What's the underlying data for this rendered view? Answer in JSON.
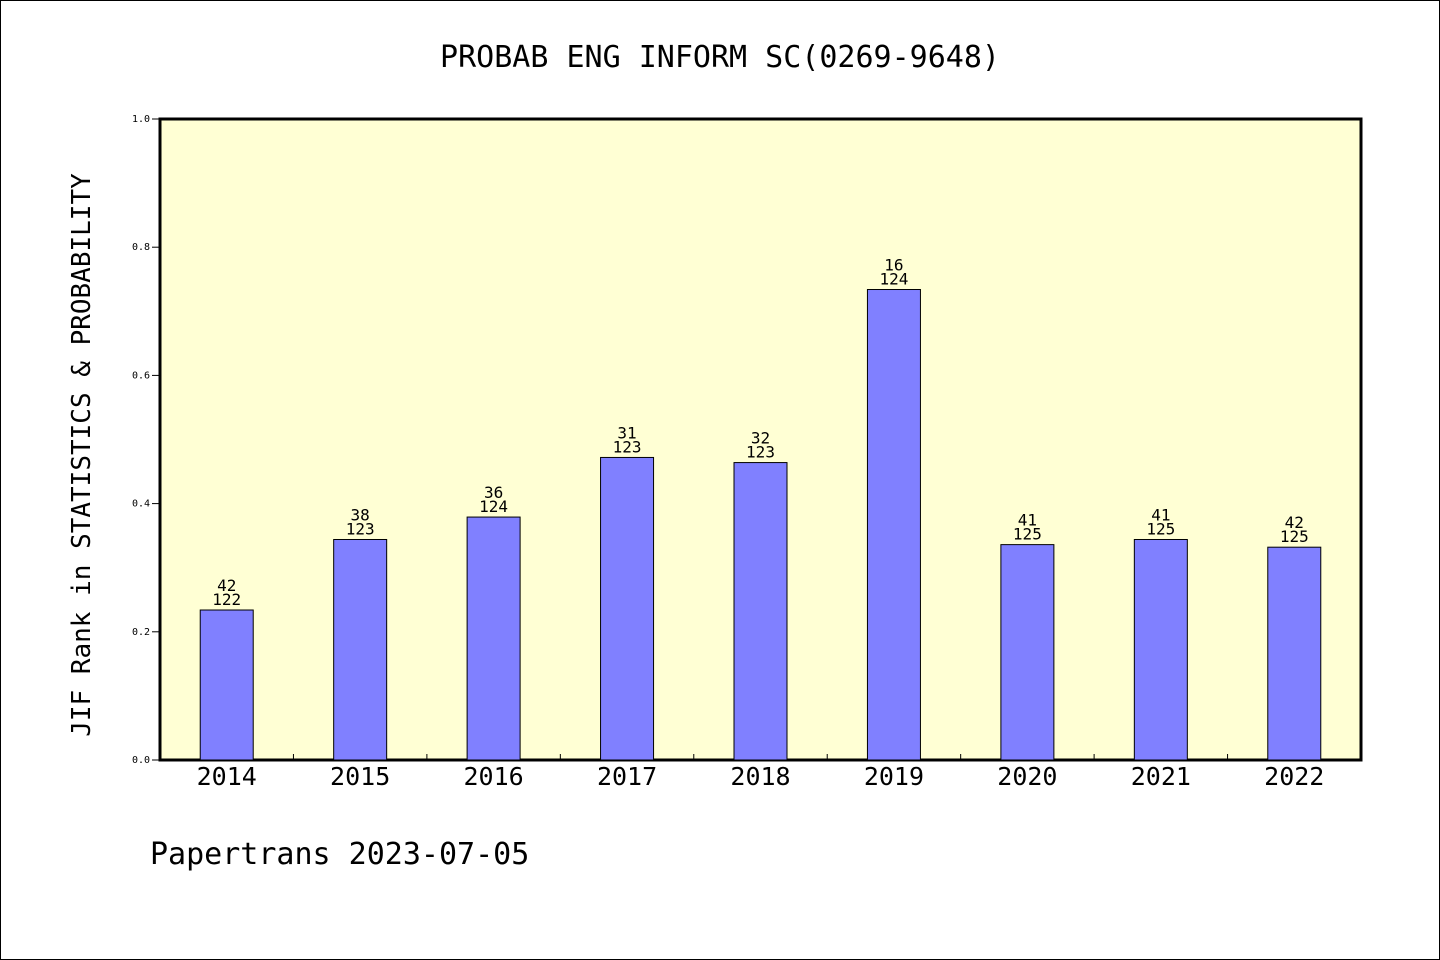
{
  "chart_data": {
    "type": "bar",
    "title": "PROBAB ENG INFORM SC(0269-9648)",
    "ylabel": "JIF Rank in STATISTICS & PROBABILITY",
    "xlabel": "",
    "categories": [
      "2014",
      "2015",
      "2016",
      "2017",
      "2018",
      "2019",
      "2020",
      "2021",
      "2022"
    ],
    "values": [
      0.234,
      0.344,
      0.379,
      0.472,
      0.464,
      0.734,
      0.336,
      0.344,
      0.332
    ],
    "rank_labels": [
      {
        "rank": "42",
        "total": "122"
      },
      {
        "rank": "38",
        "total": "123"
      },
      {
        "rank": "36",
        "total": "124"
      },
      {
        "rank": "31",
        "total": "123"
      },
      {
        "rank": "32",
        "total": "123"
      },
      {
        "rank": "16",
        "total": "124"
      },
      {
        "rank": "41",
        "total": "125"
      },
      {
        "rank": "41",
        "total": "125"
      },
      {
        "rank": "42",
        "total": "125"
      }
    ],
    "ylim": [
      0,
      1.0
    ],
    "yticks": [
      "0.0",
      "0.2",
      "0.4",
      "0.6",
      "0.8",
      "1.0"
    ],
    "grid": false,
    "legend": "none",
    "colors": {
      "plot_background": "#ffffd4",
      "bar_fill": "#8080ff",
      "bar_stroke": "#000000"
    }
  },
  "footer": {
    "text": "Papertrans 2023-07-05"
  }
}
